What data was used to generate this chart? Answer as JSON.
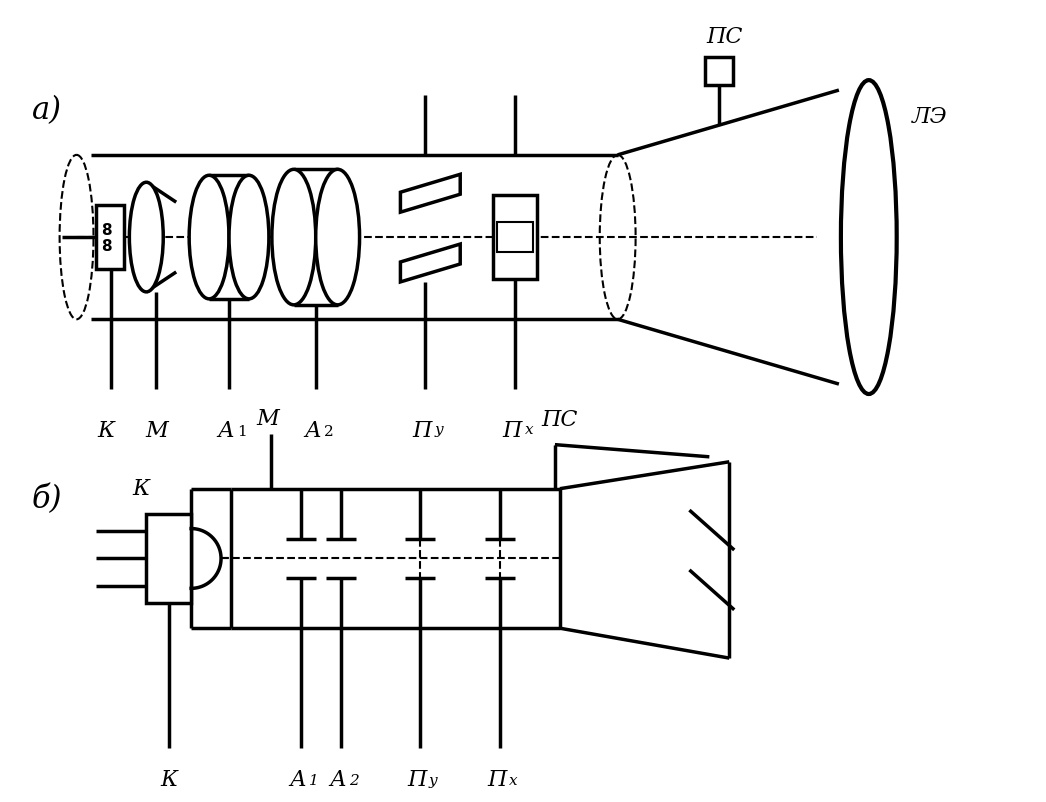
{
  "bg_color": "#ffffff",
  "lc": "#000000",
  "lw": 2.5,
  "lw_t": 1.5,
  "fig_w": 10.46,
  "fig_h": 8.03,
  "a_label": "а)",
  "b_label": "б)",
  "ps_label": "ПС",
  "le_label": "ЛЭ",
  "labels_a": [
    "К",
    "М",
    "А",
    "А",
    "П",
    "П"
  ],
  "subs_a": [
    "",
    "",
    "1",
    "2",
    "у",
    "х"
  ],
  "labels_b": [
    "К",
    "М",
    "А",
    "А",
    "П",
    "П"
  ],
  "subs_b": [
    "",
    "",
    "1",
    "2",
    "у",
    "х"
  ]
}
